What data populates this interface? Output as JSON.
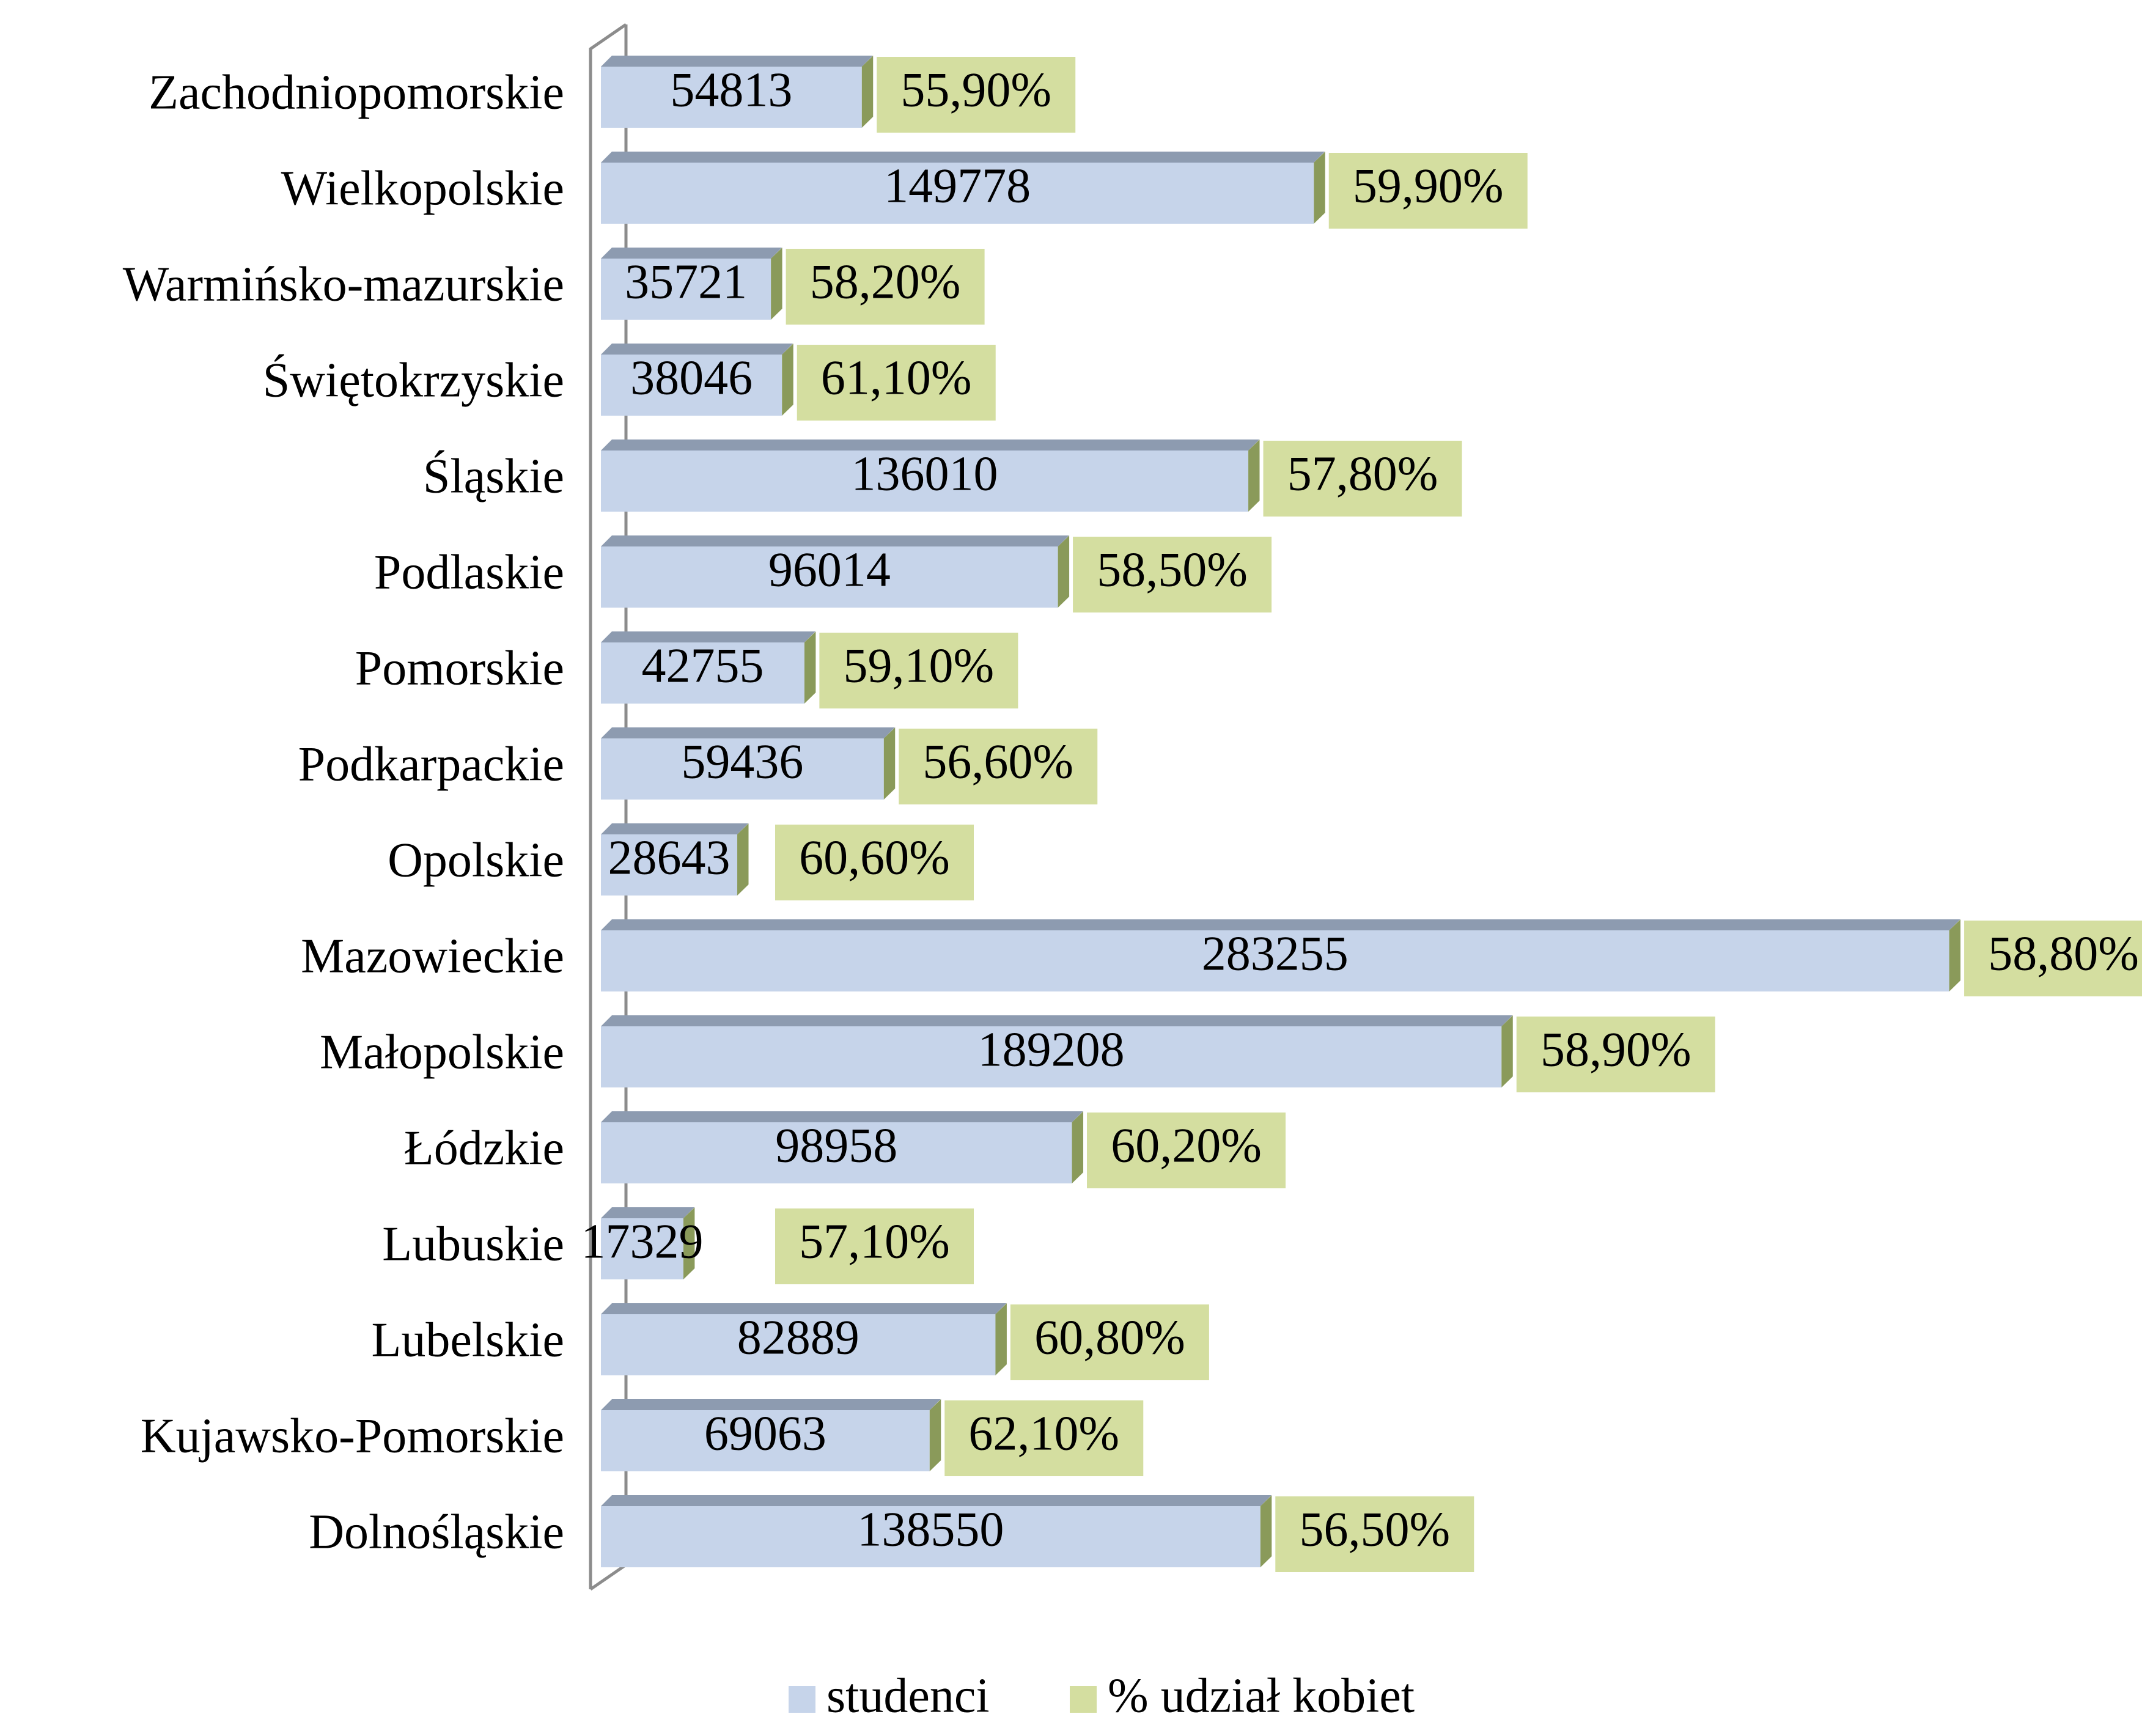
{
  "chart_data": {
    "type": "bar",
    "orientation": "horizontal",
    "stacked": true,
    "categories": [
      "Zachodniopomorskie",
      "Wielkopolskie",
      "Warmińsko-mazurskie",
      "Świętokrzyskie",
      "Śląskie",
      "Podlaskie",
      "Pomorskie",
      "Podkarpackie",
      "Opolskie",
      "Mazowieckie",
      "Małopolskie",
      "Łódzkie",
      "Lubuskie",
      "Lubelskie",
      "Kujawsko-Pomorskie",
      "Dolnośląskie"
    ],
    "series": [
      {
        "name": "studenci",
        "color": "#c6d4ea",
        "values": [
          54813,
          149778,
          35721,
          38046,
          136010,
          96014,
          42755,
          59436,
          28643,
          283255,
          189208,
          98958,
          17329,
          82889,
          69063,
          138550
        ]
      },
      {
        "name": "% udział kobiet",
        "color": "#d4dea0",
        "values": [
          55.9,
          59.9,
          58.2,
          61.1,
          57.8,
          58.5,
          59.1,
          56.6,
          60.6,
          58.8,
          58.9,
          60.2,
          57.1,
          60.8,
          62.1,
          56.5
        ],
        "value_labels": [
          "55,90%",
          "59,90%",
          "58,20%",
          "61,10%",
          "57,80%",
          "58,50%",
          "59,10%",
          "56,60%",
          "60,60%",
          "58,80%",
          "58,90%",
          "60,20%",
          "57,10%",
          "60,80%",
          "62,10%",
          "56,50%"
        ]
      }
    ],
    "xlim": [
      0,
      300000
    ],
    "legend": "bottom"
  }
}
